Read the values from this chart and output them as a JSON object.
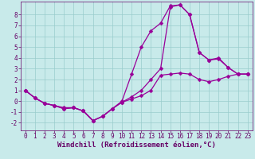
{
  "title": "",
  "xlabel": "Windchill (Refroidissement éolien,°C)",
  "bg_color": "#c8eaea",
  "line_color": "#990099",
  "grid_color": "#99cccc",
  "axis_color": "#660066",
  "xlim": [
    -0.5,
    23.5
  ],
  "ylim": [
    -2.7,
    9.2
  ],
  "xticks": [
    0,
    1,
    2,
    3,
    4,
    5,
    6,
    7,
    8,
    9,
    10,
    11,
    12,
    13,
    14,
    15,
    16,
    17,
    18,
    19,
    20,
    21,
    22,
    23
  ],
  "yticks": [
    -2,
    -1,
    0,
    1,
    2,
    3,
    4,
    5,
    6,
    7,
    8
  ],
  "curve1_x": [
    0,
    1,
    2,
    3,
    4,
    5,
    6,
    7,
    8,
    9,
    10,
    11,
    12,
    13,
    14,
    15,
    16,
    17,
    18,
    19,
    20,
    21,
    22,
    23
  ],
  "curve1_y": [
    1.0,
    0.3,
    -0.2,
    -0.4,
    -0.6,
    -0.6,
    -0.9,
    -1.8,
    -1.4,
    -0.7,
    -0.1,
    0.2,
    0.5,
    1.0,
    2.4,
    2.5,
    2.6,
    2.5,
    2.0,
    1.8,
    2.0,
    2.3,
    2.5,
    2.5
  ],
  "curve2_x": [
    0,
    1,
    2,
    3,
    4,
    5,
    6,
    7,
    8,
    9,
    10,
    11,
    12,
    13,
    14,
    15,
    16,
    17,
    18,
    19,
    20,
    21,
    22,
    23
  ],
  "curve2_y": [
    1.0,
    0.3,
    -0.2,
    -0.4,
    -0.7,
    -0.6,
    -0.9,
    -1.8,
    -1.4,
    -0.7,
    0.0,
    2.5,
    5.0,
    6.5,
    7.2,
    8.8,
    8.9,
    8.0,
    4.5,
    3.8,
    4.0,
    3.1,
    2.5,
    2.5
  ],
  "curve3_x": [
    0,
    1,
    2,
    3,
    4,
    5,
    6,
    7,
    8,
    9,
    10,
    11,
    12,
    13,
    14,
    15,
    16,
    17,
    18,
    19,
    20,
    21,
    22,
    23
  ],
  "curve3_y": [
    1.0,
    0.3,
    -0.2,
    -0.4,
    -0.7,
    -0.6,
    -0.9,
    -1.8,
    -1.4,
    -0.7,
    -0.1,
    0.4,
    1.0,
    2.0,
    3.0,
    8.7,
    8.9,
    8.0,
    4.5,
    3.8,
    3.9,
    3.1,
    2.5,
    2.5
  ],
  "marker": "D",
  "markersize": 2.5,
  "linewidth": 0.9,
  "tick_fontsize": 5.5,
  "label_fontsize": 6.5
}
